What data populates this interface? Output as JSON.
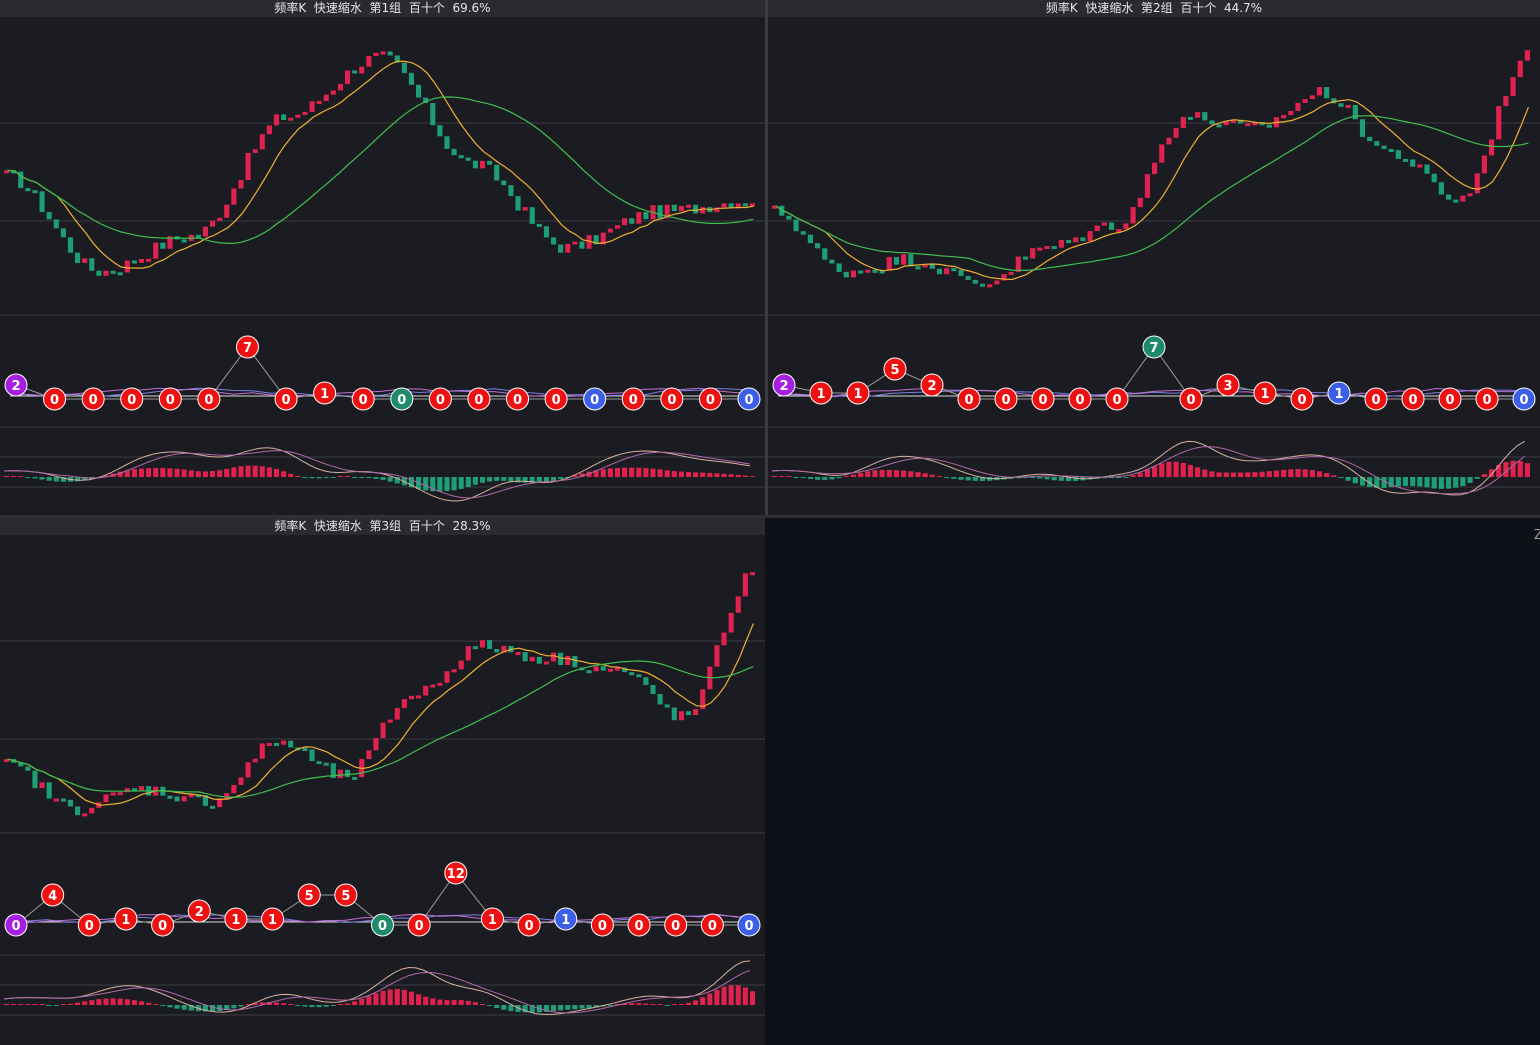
{
  "colors": {
    "background": "#0e1118",
    "panel_bg": "#1b1c21",
    "title_bar": "#2a2b31",
    "up": "#e0224f",
    "down": "#1e9e78",
    "ma_short": "#f0b030",
    "ma_long": "#3fbf4f",
    "grid": "#3a3b41",
    "badge_red": "#ee1111",
    "badge_green": "#1e8a6a",
    "badge_blue": "#3d5ee6",
    "badge_purple": "#a81ee0"
  },
  "panels": [
    {
      "id": "group1",
      "title": "频率K  快速缩水  第1组  百十个  69.6%",
      "trend": [
        0.5,
        0.1,
        0.25,
        0.75,
        1.0,
        0.55,
        0.2,
        0.35,
        0.4
      ],
      "badges": [
        "2",
        "0",
        "0",
        "0",
        "0",
        "0",
        "7",
        "0",
        "1",
        "0",
        "0",
        "0",
        "0",
        "0",
        "0",
        "0",
        "0",
        "0",
        "0",
        "0"
      ],
      "badge_colors": [
        "purple",
        "red",
        "red",
        "red",
        "red",
        "red",
        "red",
        "red",
        "red",
        "red",
        "green",
        "red",
        "red",
        "red",
        "red",
        "blue",
        "red",
        "red",
        "red",
        "blue"
      ]
    },
    {
      "id": "group2",
      "title": "频率K  快速缩水  第2组  百十个  44.7%",
      "trend": [
        0.35,
        0.1,
        0.15,
        0.05,
        0.2,
        0.3,
        0.75,
        0.7,
        0.85,
        0.6,
        0.4,
        1.0
      ],
      "badges": [
        "2",
        "1",
        "1",
        "5",
        "2",
        "0",
        "0",
        "0",
        "0",
        "0",
        "7",
        "0",
        "3",
        "1",
        "0",
        "1",
        "0",
        "0",
        "0",
        "0",
        "0"
      ],
      "badge_colors": [
        "purple",
        "red",
        "red",
        "red",
        "red",
        "red",
        "red",
        "red",
        "red",
        "red",
        "green",
        "red",
        "red",
        "red",
        "red",
        "blue",
        "red",
        "red",
        "red",
        "red",
        "blue"
      ]
    },
    {
      "id": "group3",
      "title": "频率K  快速缩水  第3组  百十个  28.3%",
      "trend": [
        0.2,
        0.02,
        0.1,
        0.05,
        0.3,
        0.15,
        0.5,
        0.7,
        0.65,
        0.6,
        0.4,
        1.0
      ],
      "badges": [
        "0",
        "4",
        "0",
        "1",
        "0",
        "2",
        "1",
        "1",
        "5",
        "5",
        "0",
        "0",
        "12",
        "1",
        "0",
        "1",
        "0",
        "0",
        "0",
        "0",
        "0"
      ],
      "badge_colors": [
        "purple",
        "red",
        "red",
        "red",
        "red",
        "red",
        "red",
        "red",
        "red",
        "red",
        "green",
        "red",
        "red",
        "red",
        "red",
        "blue",
        "red",
        "red",
        "red",
        "red",
        "blue"
      ]
    }
  ],
  "edge_glyph": "Z"
}
